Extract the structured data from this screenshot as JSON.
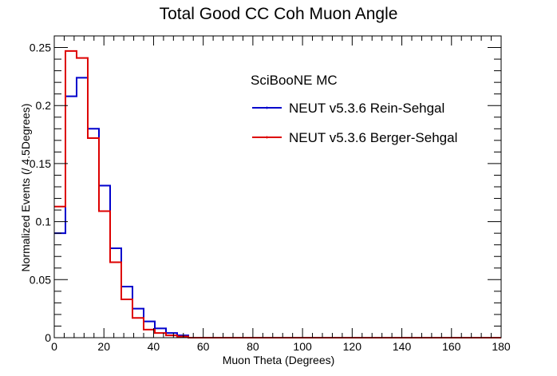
{
  "chart_data": {
    "type": "histogram",
    "title": "Total Good CC Coh Muon Angle",
    "xlabel": "Muon Theta (Degrees)",
    "ylabel": "Normalized Events (/ 4.5Degrees)",
    "xlim": [
      0,
      180
    ],
    "ylim": [
      0,
      0.26
    ],
    "x_ticks": [
      0,
      20,
      40,
      60,
      80,
      100,
      120,
      140,
      160,
      180
    ],
    "y_ticks": [
      0,
      0.05,
      0.1,
      0.15,
      0.2,
      0.25
    ],
    "x_tick_labels": [
      "0",
      "20",
      "40",
      "60",
      "80",
      "100",
      "120",
      "140",
      "160",
      "180"
    ],
    "y_tick_labels": [
      "0",
      "0.05",
      "0.1",
      "0.15",
      "0.2",
      "0.25"
    ],
    "bin_edges": [
      0,
      4.5,
      9,
      13.5,
      18,
      22.5,
      27,
      31.5,
      36,
      40.5,
      45,
      49.5,
      54
    ],
    "legend_header": "SciBooNE MC",
    "legend_position": "top-right",
    "grid": false,
    "series": [
      {
        "name": "NEUT v5.3.6 Rein-Sehgal",
        "color": "#0000cc",
        "values": [
          0.09,
          0.208,
          0.224,
          0.18,
          0.131,
          0.077,
          0.044,
          0.025,
          0.014,
          0.008,
          0.004,
          0.002
        ]
      },
      {
        "name": "NEUT v5.3.6 Berger-Sehgal",
        "color": "#dd0000",
        "values": [
          0.113,
          0.247,
          0.241,
          0.172,
          0.109,
          0.065,
          0.033,
          0.017,
          0.007,
          0.004,
          0.002,
          0.001
        ]
      }
    ]
  }
}
